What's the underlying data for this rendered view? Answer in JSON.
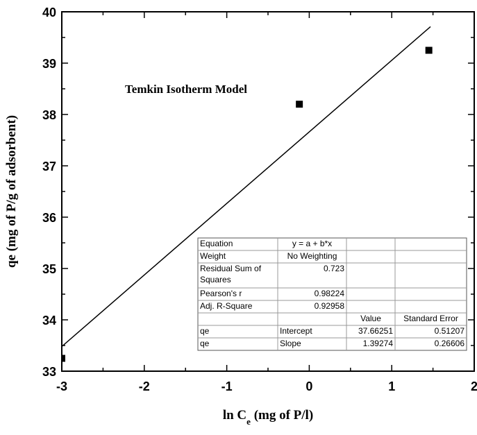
{
  "chart_data": {
    "type": "scatter",
    "xlabel": [
      "ln C",
      "e",
      " (mg of P/l)"
    ],
    "ylabel": "qe (mg of P/g of adsorbent)",
    "annotation": "Temkin Isotherm Model",
    "xlim": [
      -3,
      2
    ],
    "xticks": [
      -3,
      -2,
      -1,
      0,
      1,
      2
    ],
    "xminorticks": [
      -2.5,
      -1.5,
      -0.5,
      0.5,
      1.5
    ],
    "ylim": [
      33,
      40
    ],
    "yticks": [
      33,
      34,
      35,
      36,
      37,
      38,
      39,
      40
    ],
    "yminorticks": [
      33.5,
      34.5,
      35.5,
      36.5,
      37.5,
      38.5,
      39.5
    ],
    "series": [
      {
        "type": "scatter",
        "color": "#000000",
        "x": [
          -3,
          -0.12,
          1.45
        ],
        "values": [
          33.25,
          38.2,
          39.25
        ]
      },
      {
        "type": "line",
        "color": "#000000",
        "x": [
          -3,
          1.47
        ],
        "values": [
          33.48,
          39.71
        ]
      }
    ],
    "table": {
      "rows": [
        [
          "Equation",
          "y = a + b*x",
          null,
          null
        ],
        [
          "Weight",
          "No Weighting",
          null,
          null
        ],
        [
          "Residual Sum of Squares",
          "0.723",
          null,
          null
        ],
        [
          "Pearson's r",
          "0.98224",
          null,
          null
        ],
        [
          "Adj. R-Square",
          "0.92958",
          null,
          null
        ],
        [
          null,
          null,
          "Value",
          "Standard Error"
        ],
        [
          "qe",
          "Intercept",
          "37.66251",
          "0.51207"
        ],
        [
          "qe",
          "Slope",
          "1.39274",
          "0.26606"
        ]
      ]
    }
  }
}
